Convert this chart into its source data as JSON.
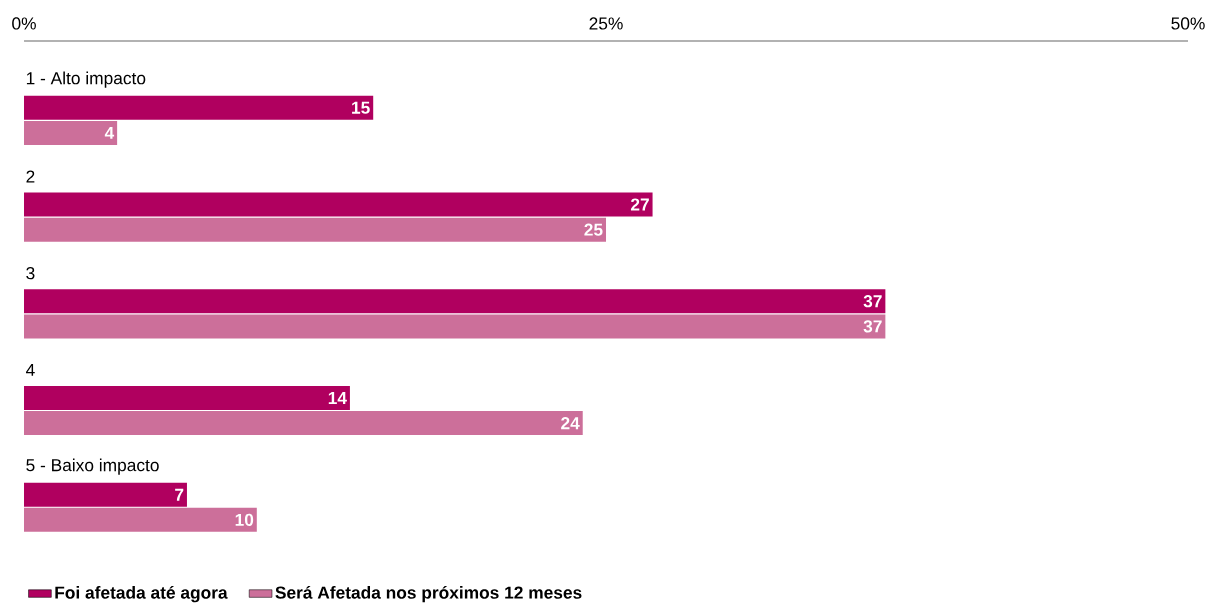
{
  "chart_data": {
    "type": "bar",
    "orientation": "horizontal",
    "categories": [
      "1 - Alto impacto",
      "2",
      "3",
      "4",
      "5 - Baixo impacto"
    ],
    "series": [
      {
        "name": "Foi afetada até agora",
        "color": "#b0005f",
        "values": [
          15,
          27,
          37,
          14,
          7
        ]
      },
      {
        "name": "Será Afetada nos próximos 12 meses",
        "color": "#cc6f9a",
        "values": [
          4,
          25,
          37,
          24,
          10
        ]
      }
    ],
    "xlim": [
      0,
      50
    ],
    "xticks": [
      {
        "value": 0,
        "label": "0%"
      },
      {
        "value": 25,
        "label": "25%"
      },
      {
        "value": 50,
        "label": "50%"
      }
    ],
    "data_labels": true,
    "legend": "bottom left",
    "grid": false
  }
}
